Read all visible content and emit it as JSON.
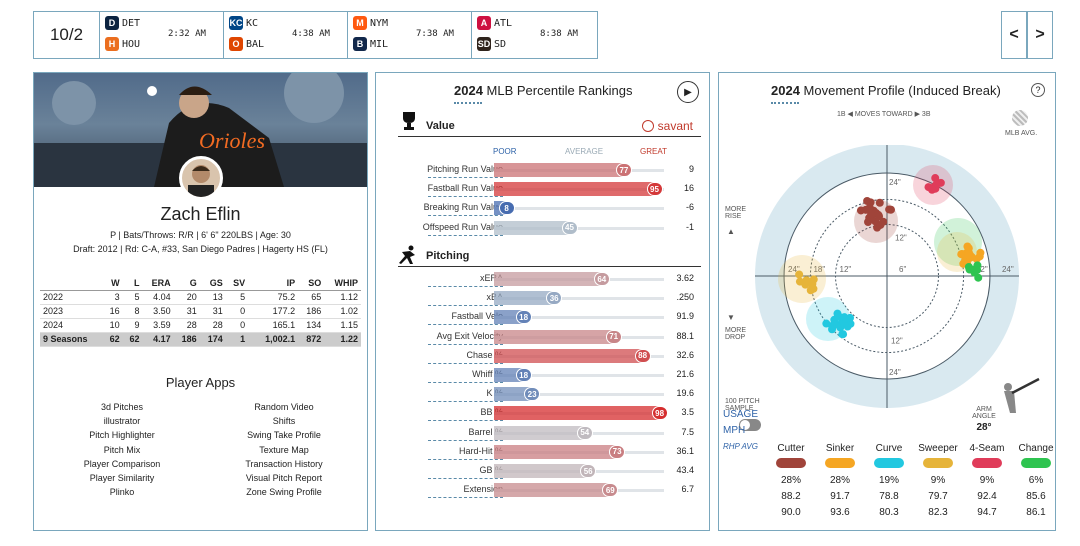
{
  "scoreboard": {
    "date": "10/2",
    "games": [
      {
        "away": "DET",
        "home": "HOU",
        "time": "2:32 AM",
        "away_color": "#0c2340",
        "home_color": "#eb6e1f",
        "away_icon": "tigers-logo-icon",
        "home_icon": "astros-logo-icon"
      },
      {
        "away": "KC",
        "home": "BAL",
        "time": "4:38 AM",
        "away_color": "#004687",
        "home_color": "#df4601",
        "away_icon": "royals-logo-icon",
        "home_icon": "orioles-logo-icon"
      },
      {
        "away": "NYM",
        "home": "MIL",
        "time": "7:38 AM",
        "away_color": "#ff5910",
        "home_color": "#12284b",
        "away_icon": "mets-logo-icon",
        "home_icon": "brewers-logo-icon"
      },
      {
        "away": "ATL",
        "home": "SD",
        "time": "8:38 AM",
        "away_color": "#ce1141",
        "home_color": "#2f241d",
        "away_icon": "braves-logo-icon",
        "home_icon": "padres-logo-icon"
      }
    ],
    "prev": "<",
    "next": ">"
  },
  "player": {
    "name": "Zach Eflin",
    "info": "P | Bats/Throws: R/R | 6' 6\" 220LBS | Age: 30",
    "draft": "Draft: 2012 | Rd: C-A, #33, San Diego Padres | Hagerty HS (FL)",
    "stats_headers": [
      "",
      "W",
      "L",
      "ERA",
      "G",
      "GS",
      "SV",
      "IP",
      "SO",
      "WHIP"
    ],
    "stats_rows": [
      [
        "2022",
        "3",
        "5",
        "4.04",
        "20",
        "13",
        "5",
        "75.2",
        "65",
        "1.12"
      ],
      [
        "2023",
        "16",
        "8",
        "3.50",
        "31",
        "31",
        "0",
        "177.2",
        "186",
        "1.02"
      ],
      [
        "2024",
        "10",
        "9",
        "3.59",
        "28",
        "28",
        "0",
        "165.1",
        "134",
        "1.15"
      ],
      [
        "9 Seasons",
        "62",
        "62",
        "4.17",
        "186",
        "174",
        "1",
        "1,002.1",
        "872",
        "1.22"
      ]
    ]
  },
  "apps": {
    "title": "Player Apps",
    "left": [
      "3d Pitches",
      "illustrator",
      "Pitch Highlighter",
      "Pitch Mix",
      "Player Comparison",
      "Player Similarity",
      "Plinko"
    ],
    "right": [
      "Random Video",
      "Shifts",
      "Swing Take Profile",
      "Texture Map",
      "Transaction History",
      "Visual Pitch Report",
      "Zone Swing Profile"
    ]
  },
  "percentile": {
    "year": "2024",
    "title": "MLB Percentile Rankings",
    "value_section": "Value",
    "pitching_section": "Pitching",
    "savant": "savant",
    "poor": "POOR",
    "average": "AVERAGE",
    "great": "GREAT",
    "value_rows": [
      {
        "label": "Pitching Run Value",
        "pct": 77,
        "val": "9"
      },
      {
        "label": "Fastball Run Value",
        "pct": 95,
        "val": "16"
      },
      {
        "label": "Breaking Run Value",
        "pct": 8,
        "val": "-6"
      },
      {
        "label": "Offspeed Run Value",
        "pct": 45,
        "val": "-1"
      }
    ],
    "pitching_rows": [
      {
        "label": "xERA",
        "pct": 64,
        "val": "3.62"
      },
      {
        "label": "xBA",
        "pct": 36,
        "val": ".250"
      },
      {
        "label": "Fastball Velo",
        "pct": 18,
        "val": "91.9"
      },
      {
        "label": "Avg Exit Velocity",
        "pct": 71,
        "val": "88.1"
      },
      {
        "label": "Chase %",
        "pct": 88,
        "val": "32.6"
      },
      {
        "label": "Whiff %",
        "pct": 18,
        "val": "21.6"
      },
      {
        "label": "K %",
        "pct": 23,
        "val": "19.6"
      },
      {
        "label": "BB %",
        "pct": 98,
        "val": "3.5"
      },
      {
        "label": "Barrel %",
        "pct": 54,
        "val": "7.5"
      },
      {
        "label": "Hard-Hit %",
        "pct": 73,
        "val": "36.1"
      },
      {
        "label": "GB %",
        "pct": 56,
        "val": "43.4"
      },
      {
        "label": "Extension",
        "pct": 69,
        "val": "6.7"
      }
    ]
  },
  "movement": {
    "year": "2024",
    "title": "Movement Profile (Induced Break)",
    "moves_toward": "1B ◀  MOVES TOWARD  ▶ 3B",
    "mlb_avg": "MLB AVG.",
    "more_rise": "MORE RISE",
    "more_drop": "MORE DROP",
    "sample": "100 PITCH SAMPLE",
    "arm_angle_label": "ARM ANGLE",
    "arm_angle": "28°",
    "rings": {
      "outer": "24\"",
      "mid": "18\"",
      "inner": "12\"",
      "small": "6\""
    },
    "pitches": [
      {
        "name": "Cutter",
        "color": "#a0443a",
        "usage": "28%",
        "mph": "88.2",
        "rhp": "90.0"
      },
      {
        "name": "Sinker",
        "color": "#f5a623",
        "usage": "28%",
        "mph": "91.7",
        "rhp": "93.6"
      },
      {
        "name": "Curve",
        "color": "#22c8e0",
        "usage": "19%",
        "mph": "78.8",
        "rhp": "80.3"
      },
      {
        "name": "Sweeper",
        "color": "#e6b43a",
        "usage": "9%",
        "mph": "79.7",
        "rhp": "82.3"
      },
      {
        "name": "4-Seam",
        "color": "#e03c5a",
        "usage": "9%",
        "mph": "92.4",
        "rhp": "94.7"
      },
      {
        "name": "Change",
        "color": "#2ec450",
        "usage": "6%",
        "mph": "85.6",
        "rhp": "86.1"
      }
    ],
    "rows": {
      "usage": "USAGE",
      "mph": "MPH",
      "rhp": "RHP AVG"
    }
  }
}
